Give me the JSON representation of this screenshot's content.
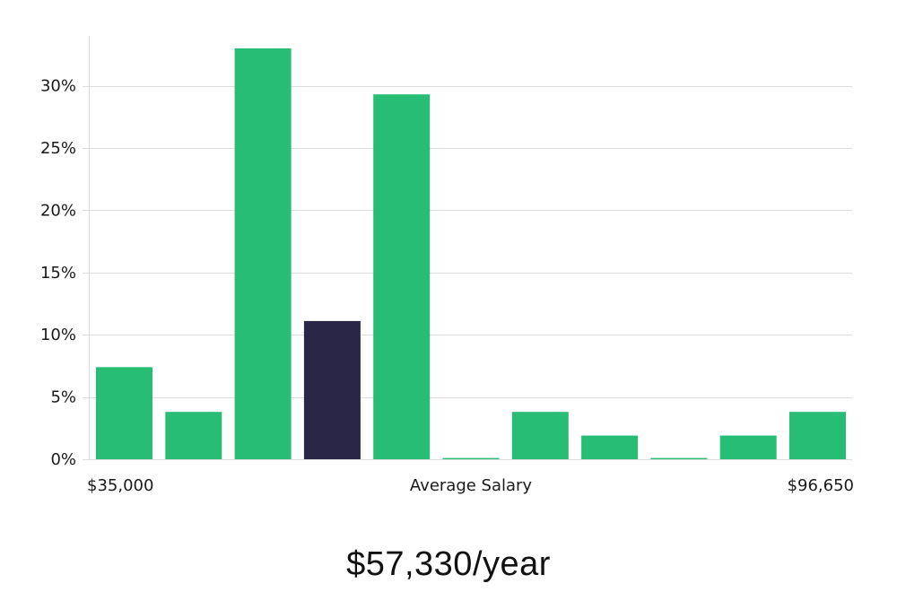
{
  "chart_data": {
    "type": "bar",
    "title": "",
    "xlabel": "Average Salary",
    "ylabel": "",
    "x_range_labels": {
      "min": "$35,000",
      "max": "$96,650"
    },
    "values": [
      7.4,
      3.8,
      33.0,
      11.1,
      29.3,
      0.1,
      3.8,
      1.9,
      0.1,
      1.9,
      3.8
    ],
    "highlight_index": 3,
    "ylim": [
      0,
      34
    ],
    "yticks": [
      0,
      5,
      10,
      15,
      20,
      25,
      30
    ],
    "ytick_labels": [
      "0%",
      "5%",
      "10%",
      "15%",
      "20%",
      "25%",
      "30%"
    ],
    "grid": true,
    "colors": {
      "bar": "#27bd74",
      "highlight": "#2a2647",
      "grid": "#dddddd",
      "axis": "#dddddd"
    }
  },
  "summary": {
    "salary_text": "$57,330/year"
  }
}
